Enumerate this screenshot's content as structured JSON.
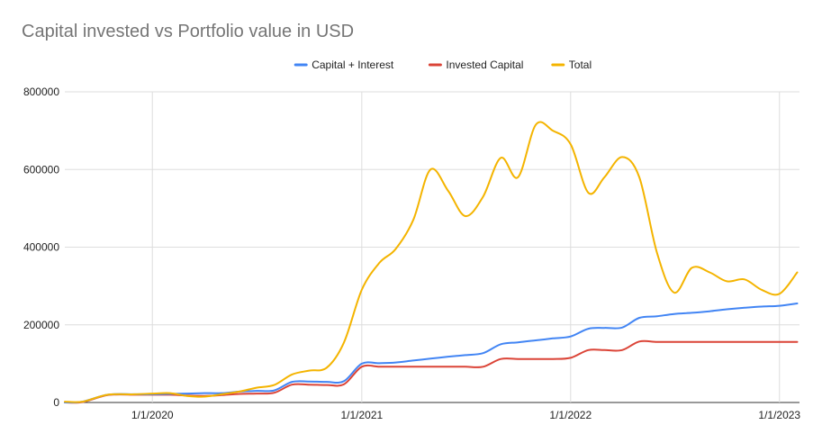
{
  "chart_data": {
    "type": "line",
    "title": "Capital invested vs Portfolio value in USD",
    "xlabel": "",
    "ylabel": "",
    "x_ticks": [
      "1/1/2020",
      "1/1/2021",
      "1/1/2022",
      "1/1/2023"
    ],
    "y_ticks": [
      "0",
      "200000",
      "400000",
      "600000",
      "800000"
    ],
    "ylim": [
      0,
      800000
    ],
    "grid": true,
    "legend_position": "top",
    "series": [
      {
        "name": "Capital + Interest",
        "color": "#4285F4",
        "points": [
          [
            "2019-08-01",
            0
          ],
          [
            "2019-09-01",
            2000
          ],
          [
            "2019-10-15",
            20000
          ],
          [
            "2019-12-01",
            21000
          ],
          [
            "2020-01-01",
            21000
          ],
          [
            "2020-02-01",
            22000
          ],
          [
            "2020-03-01",
            23000
          ],
          [
            "2020-04-01",
            24000
          ],
          [
            "2020-05-01",
            24000
          ],
          [
            "2020-06-01",
            28000
          ],
          [
            "2020-07-01",
            30000
          ],
          [
            "2020-08-01",
            31000
          ],
          [
            "2020-09-01",
            53000
          ],
          [
            "2020-10-01",
            54000
          ],
          [
            "2020-11-01",
            53000
          ],
          [
            "2020-12-01",
            55000
          ],
          [
            "2021-01-01",
            100000
          ],
          [
            "2021-02-01",
            101000
          ],
          [
            "2021-03-01",
            103000
          ],
          [
            "2021-04-01",
            108000
          ],
          [
            "2021-05-01",
            113000
          ],
          [
            "2021-06-01",
            118000
          ],
          [
            "2021-07-01",
            122000
          ],
          [
            "2021-08-01",
            127000
          ],
          [
            "2021-09-01",
            150000
          ],
          [
            "2021-10-01",
            155000
          ],
          [
            "2021-11-01",
            160000
          ],
          [
            "2021-12-01",
            165000
          ],
          [
            "2022-01-01",
            170000
          ],
          [
            "2022-02-01",
            190000
          ],
          [
            "2022-03-01",
            192000
          ],
          [
            "2022-04-01",
            193000
          ],
          [
            "2022-05-01",
            218000
          ],
          [
            "2022-06-01",
            222000
          ],
          [
            "2022-07-01",
            228000
          ],
          [
            "2022-08-01",
            231000
          ],
          [
            "2022-09-01",
            235000
          ],
          [
            "2022-10-01",
            240000
          ],
          [
            "2022-11-01",
            244000
          ],
          [
            "2022-12-01",
            247000
          ],
          [
            "2023-01-01",
            249000
          ],
          [
            "2023-02-01",
            255000
          ]
        ]
      },
      {
        "name": "Invested Capital",
        "color": "#DB4437",
        "points": [
          [
            "2019-08-01",
            0
          ],
          [
            "2019-09-01",
            1000
          ],
          [
            "2019-10-15",
            19000
          ],
          [
            "2019-12-01",
            20000
          ],
          [
            "2020-01-01",
            20000
          ],
          [
            "2020-02-01",
            20000
          ],
          [
            "2020-03-01",
            18000
          ],
          [
            "2020-04-01",
            17000
          ],
          [
            "2020-05-01",
            19000
          ],
          [
            "2020-06-01",
            22000
          ],
          [
            "2020-07-01",
            23000
          ],
          [
            "2020-08-01",
            25000
          ],
          [
            "2020-09-01",
            46000
          ],
          [
            "2020-10-01",
            46000
          ],
          [
            "2020-11-01",
            45000
          ],
          [
            "2020-12-01",
            47000
          ],
          [
            "2021-01-01",
            92000
          ],
          [
            "2021-02-01",
            92000
          ],
          [
            "2021-03-01",
            92000
          ],
          [
            "2021-04-01",
            92000
          ],
          [
            "2021-05-01",
            92000
          ],
          [
            "2021-06-01",
            92000
          ],
          [
            "2021-07-01",
            92000
          ],
          [
            "2021-08-01",
            92000
          ],
          [
            "2021-09-01",
            112000
          ],
          [
            "2021-10-01",
            112000
          ],
          [
            "2021-11-01",
            112000
          ],
          [
            "2021-12-01",
            112000
          ],
          [
            "2022-01-01",
            115000
          ],
          [
            "2022-02-01",
            135000
          ],
          [
            "2022-03-01",
            135000
          ],
          [
            "2022-04-01",
            135000
          ],
          [
            "2022-05-01",
            157000
          ],
          [
            "2022-06-01",
            156000
          ],
          [
            "2022-07-01",
            156000
          ],
          [
            "2022-08-01",
            156000
          ],
          [
            "2022-09-01",
            156000
          ],
          [
            "2022-10-01",
            156000
          ],
          [
            "2022-11-01",
            156000
          ],
          [
            "2022-12-01",
            156000
          ],
          [
            "2023-01-01",
            156000
          ],
          [
            "2023-02-01",
            156000
          ]
        ]
      },
      {
        "name": "Total",
        "color": "#F4B400",
        "points": [
          [
            "2019-08-01",
            2000
          ],
          [
            "2019-09-01",
            2000
          ],
          [
            "2019-10-15",
            20000
          ],
          [
            "2019-12-01",
            21000
          ],
          [
            "2020-01-01",
            23000
          ],
          [
            "2020-02-01",
            24000
          ],
          [
            "2020-03-01",
            17000
          ],
          [
            "2020-04-01",
            15000
          ],
          [
            "2020-05-01",
            21000
          ],
          [
            "2020-06-01",
            28000
          ],
          [
            "2020-07-01",
            38000
          ],
          [
            "2020-08-01",
            45000
          ],
          [
            "2020-09-01",
            72000
          ],
          [
            "2020-10-01",
            82000
          ],
          [
            "2020-11-01",
            90000
          ],
          [
            "2020-12-01",
            155000
          ],
          [
            "2021-01-01",
            290000
          ],
          [
            "2021-02-01",
            360000
          ],
          [
            "2021-03-01",
            395000
          ],
          [
            "2021-04-01",
            470000
          ],
          [
            "2021-05-01",
            600000
          ],
          [
            "2021-06-01",
            545000
          ],
          [
            "2021-07-01",
            480000
          ],
          [
            "2021-08-01",
            530000
          ],
          [
            "2021-09-01",
            630000
          ],
          [
            "2021-10-01",
            580000
          ],
          [
            "2021-11-01",
            715000
          ],
          [
            "2021-12-01",
            700000
          ],
          [
            "2022-01-01",
            665000
          ],
          [
            "2022-02-01",
            540000
          ],
          [
            "2022-03-01",
            580000
          ],
          [
            "2022-04-01",
            632000
          ],
          [
            "2022-05-01",
            580000
          ],
          [
            "2022-06-01",
            385000
          ],
          [
            "2022-07-01",
            283000
          ],
          [
            "2022-08-01",
            347000
          ],
          [
            "2022-09-01",
            335000
          ],
          [
            "2022-10-01",
            312000
          ],
          [
            "2022-11-01",
            317000
          ],
          [
            "2022-12-01",
            290000
          ],
          [
            "2023-01-01",
            280000
          ],
          [
            "2023-02-01",
            335000
          ]
        ]
      }
    ]
  }
}
